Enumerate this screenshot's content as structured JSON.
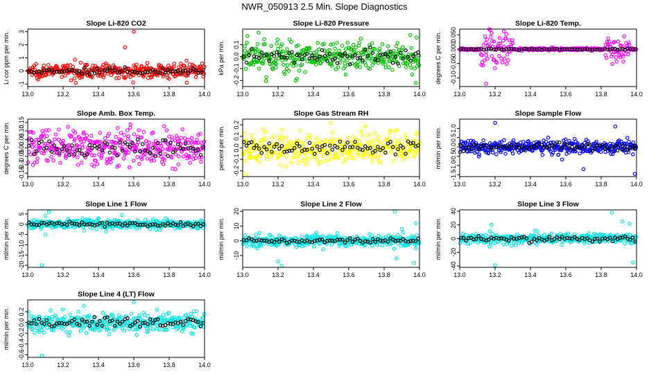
{
  "figure": {
    "title": "NWR_050913  2.5 Min. Slope Diagnostics"
  },
  "colors": {
    "points": "#000000",
    "axis": "#000000"
  },
  "chart_data": [
    {
      "type": "scatter",
      "title": "Slope Li-820 CO2",
      "ylabel": "Li cor ppm per min.",
      "color": "#ff0000",
      "xlim": [
        13.0,
        14.0
      ],
      "ylim": [
        -1.2,
        3.2
      ],
      "spread": 0.35,
      "yticks": [
        -1,
        0,
        1,
        2,
        3
      ],
      "ytick_labels": [
        "-1",
        "0",
        "1",
        "2",
        "3"
      ],
      "xticks": [
        13.0,
        13.2,
        13.4,
        13.6,
        13.8,
        14.0
      ],
      "xtick_labels": [
        "13.0",
        "13.2",
        "13.4",
        "13.6",
        "13.8",
        "14.0"
      ],
      "outliers": [
        [
          13.6,
          3.0
        ],
        [
          13.55,
          1.8
        ],
        [
          13.9,
          -0.9
        ]
      ]
    },
    {
      "type": "scatter",
      "title": "Slope Li-820 Pressure",
      "ylabel": "kPa per min.",
      "color": "#00c000",
      "xlim": [
        13.0,
        14.0
      ],
      "ylim": [
        -0.25,
        0.23
      ],
      "spread": 0.09,
      "yticks": [
        -0.2,
        -0.1,
        0.0,
        0.1
      ],
      "ytick_labels": [
        "-0.2",
        "-0.1",
        "0.0",
        "0.1"
      ],
      "xticks": [
        13.0,
        13.2,
        13.4,
        13.6,
        13.8,
        14.0
      ],
      "xtick_labels": [
        "13.0",
        "13.2",
        "13.4",
        "13.6",
        "13.8",
        "14.0"
      ],
      "outliers": [
        [
          13.09,
          0.2
        ],
        [
          13.98,
          -0.22
        ],
        [
          13.3,
          -0.2
        ]
      ]
    },
    {
      "type": "scatter",
      "title": "Slope Li-820 Temp.",
      "ylabel": "degrees C per min.",
      "color": "#ff00ff",
      "xlim": [
        13.0,
        14.0
      ],
      "ylim": [
        -0.13,
        0.07
      ],
      "spread": 0.003,
      "yticks": [
        -0.1,
        -0.05,
        0.0,
        0.05
      ],
      "ytick_labels": [
        "-0.10",
        "-0.05",
        "0.000",
        "0.050"
      ],
      "xticks": [
        13.0,
        13.2,
        13.4,
        13.6,
        13.8,
        14.0
      ],
      "xtick_labels": [
        "13.0",
        "13.2",
        "13.4",
        "13.6",
        "13.8",
        "14.0"
      ],
      "bursts": [
        [
          13.12,
          13.3,
          0.04
        ],
        [
          13.82,
          13.96,
          0.025
        ]
      ],
      "outliers": [
        [
          13.15,
          -0.12
        ],
        [
          13.25,
          0.062
        ]
      ]
    },
    {
      "type": "scatter",
      "title": "Slope Amb. Box Temp.",
      "ylabel": "degrees C per min.",
      "color": "#ff00ff",
      "xlim": [
        13.0,
        14.0
      ],
      "ylim": [
        -0.17,
        0.17
      ],
      "spread": 0.07,
      "yticks": [
        -0.15,
        -0.1,
        -0.05,
        0.0,
        0.05,
        0.1,
        0.15
      ],
      "ytick_labels": [
        "-0.15",
        "-0.1",
        "-0.05",
        "0.00",
        "0.05",
        "0.10",
        "0.15"
      ],
      "xticks": [
        13.0,
        13.2,
        13.4,
        13.6,
        13.8,
        14.0
      ],
      "xtick_labels": [
        "13.0",
        "13.2",
        "13.4",
        "13.6",
        "13.8",
        "14.0"
      ],
      "outliers": []
    },
    {
      "type": "scatter",
      "title": "Slope Gas Stream RH",
      "ylabel": "percent per min.",
      "color": "#ffff00",
      "xlim": [
        13.0,
        14.0
      ],
      "ylim": [
        -0.25,
        0.25
      ],
      "spread": 0.09,
      "yticks": [
        -0.2,
        -0.1,
        0.0,
        0.1,
        0.2
      ],
      "ytick_labels": [
        "-0.2",
        "-0.1",
        "0.0",
        "0.1",
        "0.2"
      ],
      "xticks": [
        13.0,
        13.2,
        13.4,
        13.6,
        13.8,
        14.0
      ],
      "xtick_labels": [
        "13.0",
        "13.2",
        "13.4",
        "13.6",
        "13.8",
        "14.0"
      ],
      "outliers": [
        [
          13.02,
          -0.23
        ]
      ]
    },
    {
      "type": "scatter",
      "title": "Slope Sample Flow",
      "ylabel": "ml/min per min.",
      "color": "#0000ff",
      "xlim": [
        13.0,
        14.0
      ],
      "ylim": [
        -1.6,
        1.5
      ],
      "spread": 0.25,
      "yticks": [
        -1.5,
        -1.0,
        -0.5,
        0.0,
        0.5,
        1.0
      ],
      "ytick_labels": [
        "-1.5",
        "-1.0",
        "-0.5",
        "0.0",
        "0.5",
        "1.0"
      ],
      "xticks": [
        13.0,
        13.2,
        13.4,
        13.6,
        13.8,
        14.0
      ],
      "xtick_labels": [
        "13.0",
        "13.2",
        "13.4",
        "13.6",
        "13.8",
        "14.0"
      ],
      "outliers": [
        [
          13.2,
          1.3
        ],
        [
          13.88,
          1.1
        ],
        [
          13.99,
          -1.45
        ],
        [
          13.7,
          -1.2
        ]
      ]
    },
    {
      "type": "scatter",
      "title": "Slope Line 1 Flow",
      "ylabel": "ml/min per min.",
      "color": "#00e5e5",
      "xlim": [
        13.0,
        14.0
      ],
      "ylim": [
        -21,
        7
      ],
      "spread": 1.5,
      "yticks": [
        -20,
        -15,
        -10,
        -5,
        0,
        5
      ],
      "ytick_labels": [
        "-20",
        "-15",
        "-10",
        "-5",
        "0",
        "5"
      ],
      "xticks": [
        13.0,
        13.2,
        13.4,
        13.6,
        13.8,
        14.0
      ],
      "xtick_labels": [
        "13.0",
        "13.2",
        "13.4",
        "13.6",
        "13.8",
        "14.0"
      ],
      "outliers": [
        [
          13.08,
          -20
        ],
        [
          13.1,
          -5
        ],
        [
          13.12,
          6
        ]
      ]
    },
    {
      "type": "scatter",
      "title": "Slope Line 2 Flow",
      "ylabel": "ml/min per min.",
      "color": "#00e5e5",
      "xlim": [
        13.0,
        14.0
      ],
      "ylim": [
        -18,
        21
      ],
      "spread": 2.5,
      "yticks": [
        -10,
        0,
        10,
        20
      ],
      "ytick_labels": [
        "-10",
        "0",
        "10",
        "20"
      ],
      "xticks": [
        13.0,
        13.2,
        13.4,
        13.6,
        13.8,
        14.0
      ],
      "xtick_labels": [
        "13.0",
        "13.2",
        "13.4",
        "13.6",
        "13.8",
        "14.0"
      ],
      "outliers": [
        [
          13.2,
          -14
        ],
        [
          13.22,
          -17
        ],
        [
          13.86,
          20
        ],
        [
          13.87,
          -12
        ],
        [
          13.9,
          8
        ],
        [
          13.98,
          12
        ],
        [
          13.97,
          -15
        ]
      ]
    },
    {
      "type": "scatter",
      "title": "Slope Line 3 Flow",
      "ylabel": "ml/min per min.",
      "color": "#00e5e5",
      "xlim": [
        13.0,
        14.0
      ],
      "ylim": [
        -42,
        42
      ],
      "spread": 5,
      "yticks": [
        -40,
        -20,
        0,
        20,
        40
      ],
      "ytick_labels": [
        "-40",
        "-20",
        "0",
        "20",
        "40"
      ],
      "xticks": [
        13.0,
        13.2,
        13.4,
        13.6,
        13.8,
        14.0
      ],
      "xtick_labels": [
        "13.0",
        "13.2",
        "13.4",
        "13.6",
        "13.8",
        "14.0"
      ],
      "outliers": [
        [
          13.2,
          -39
        ],
        [
          13.18,
          20
        ],
        [
          13.86,
          38
        ],
        [
          13.92,
          25
        ],
        [
          13.98,
          -35
        ],
        [
          13.96,
          22
        ]
      ]
    },
    {
      "type": "scatter",
      "title": "Slope Line 4 (LT) Flow",
      "ylabel": "ml/min per min.",
      "color": "#00e5e5",
      "xlim": [
        13.0,
        14.0
      ],
      "ylim": [
        -0.65,
        0.42
      ],
      "spread": 0.12,
      "yticks": [
        -0.6,
        -0.4,
        -0.2,
        0.0,
        0.2
      ],
      "ytick_labels": [
        "-0.6",
        "-0.4",
        "-0.2",
        "0.0",
        "0.2"
      ],
      "xticks": [
        13.0,
        13.2,
        13.4,
        13.6,
        13.8,
        14.0
      ],
      "xtick_labels": [
        "13.0",
        "13.2",
        "13.4",
        "13.6",
        "13.8",
        "14.0"
      ],
      "outliers": [
        [
          13.08,
          -0.62
        ],
        [
          13.6,
          0.38
        ]
      ]
    }
  ]
}
